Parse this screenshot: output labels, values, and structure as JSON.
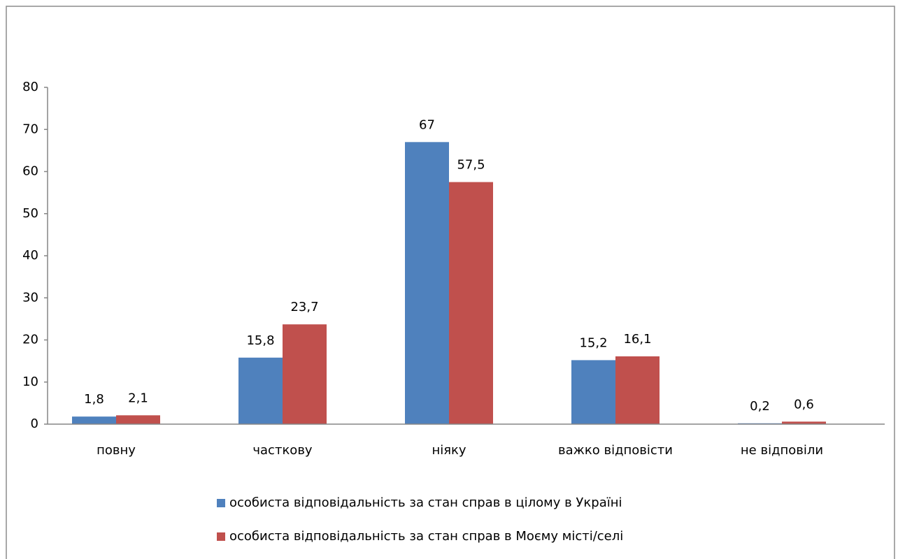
{
  "chart_data": {
    "type": "bar",
    "categories": [
      "повну",
      "часткову",
      "ніяку",
      "важко відповісти",
      "не відповіли"
    ],
    "series": [
      {
        "name": "особиста відповідальність за стан справ в цілому в Україні",
        "color": "#4f81bd",
        "values": [
          1.8,
          15.8,
          67,
          15.2,
          0.2
        ],
        "value_labels": [
          "1,8",
          "15,8",
          "67",
          "15,2",
          "0,2"
        ]
      },
      {
        "name": "особиста відповідальність за стан справ в Моєму місті/селі",
        "color": "#c0504d",
        "values": [
          2.1,
          23.7,
          57.5,
          16.1,
          0.6
        ],
        "value_labels": [
          "2,1",
          "23,7",
          "57,5",
          "16,1",
          "0,6"
        ]
      }
    ],
    "ylim": [
      0,
      80
    ],
    "yticks": [
      0,
      10,
      20,
      30,
      40,
      50,
      60,
      70,
      80
    ],
    "grid": false,
    "legend": "bottom"
  }
}
